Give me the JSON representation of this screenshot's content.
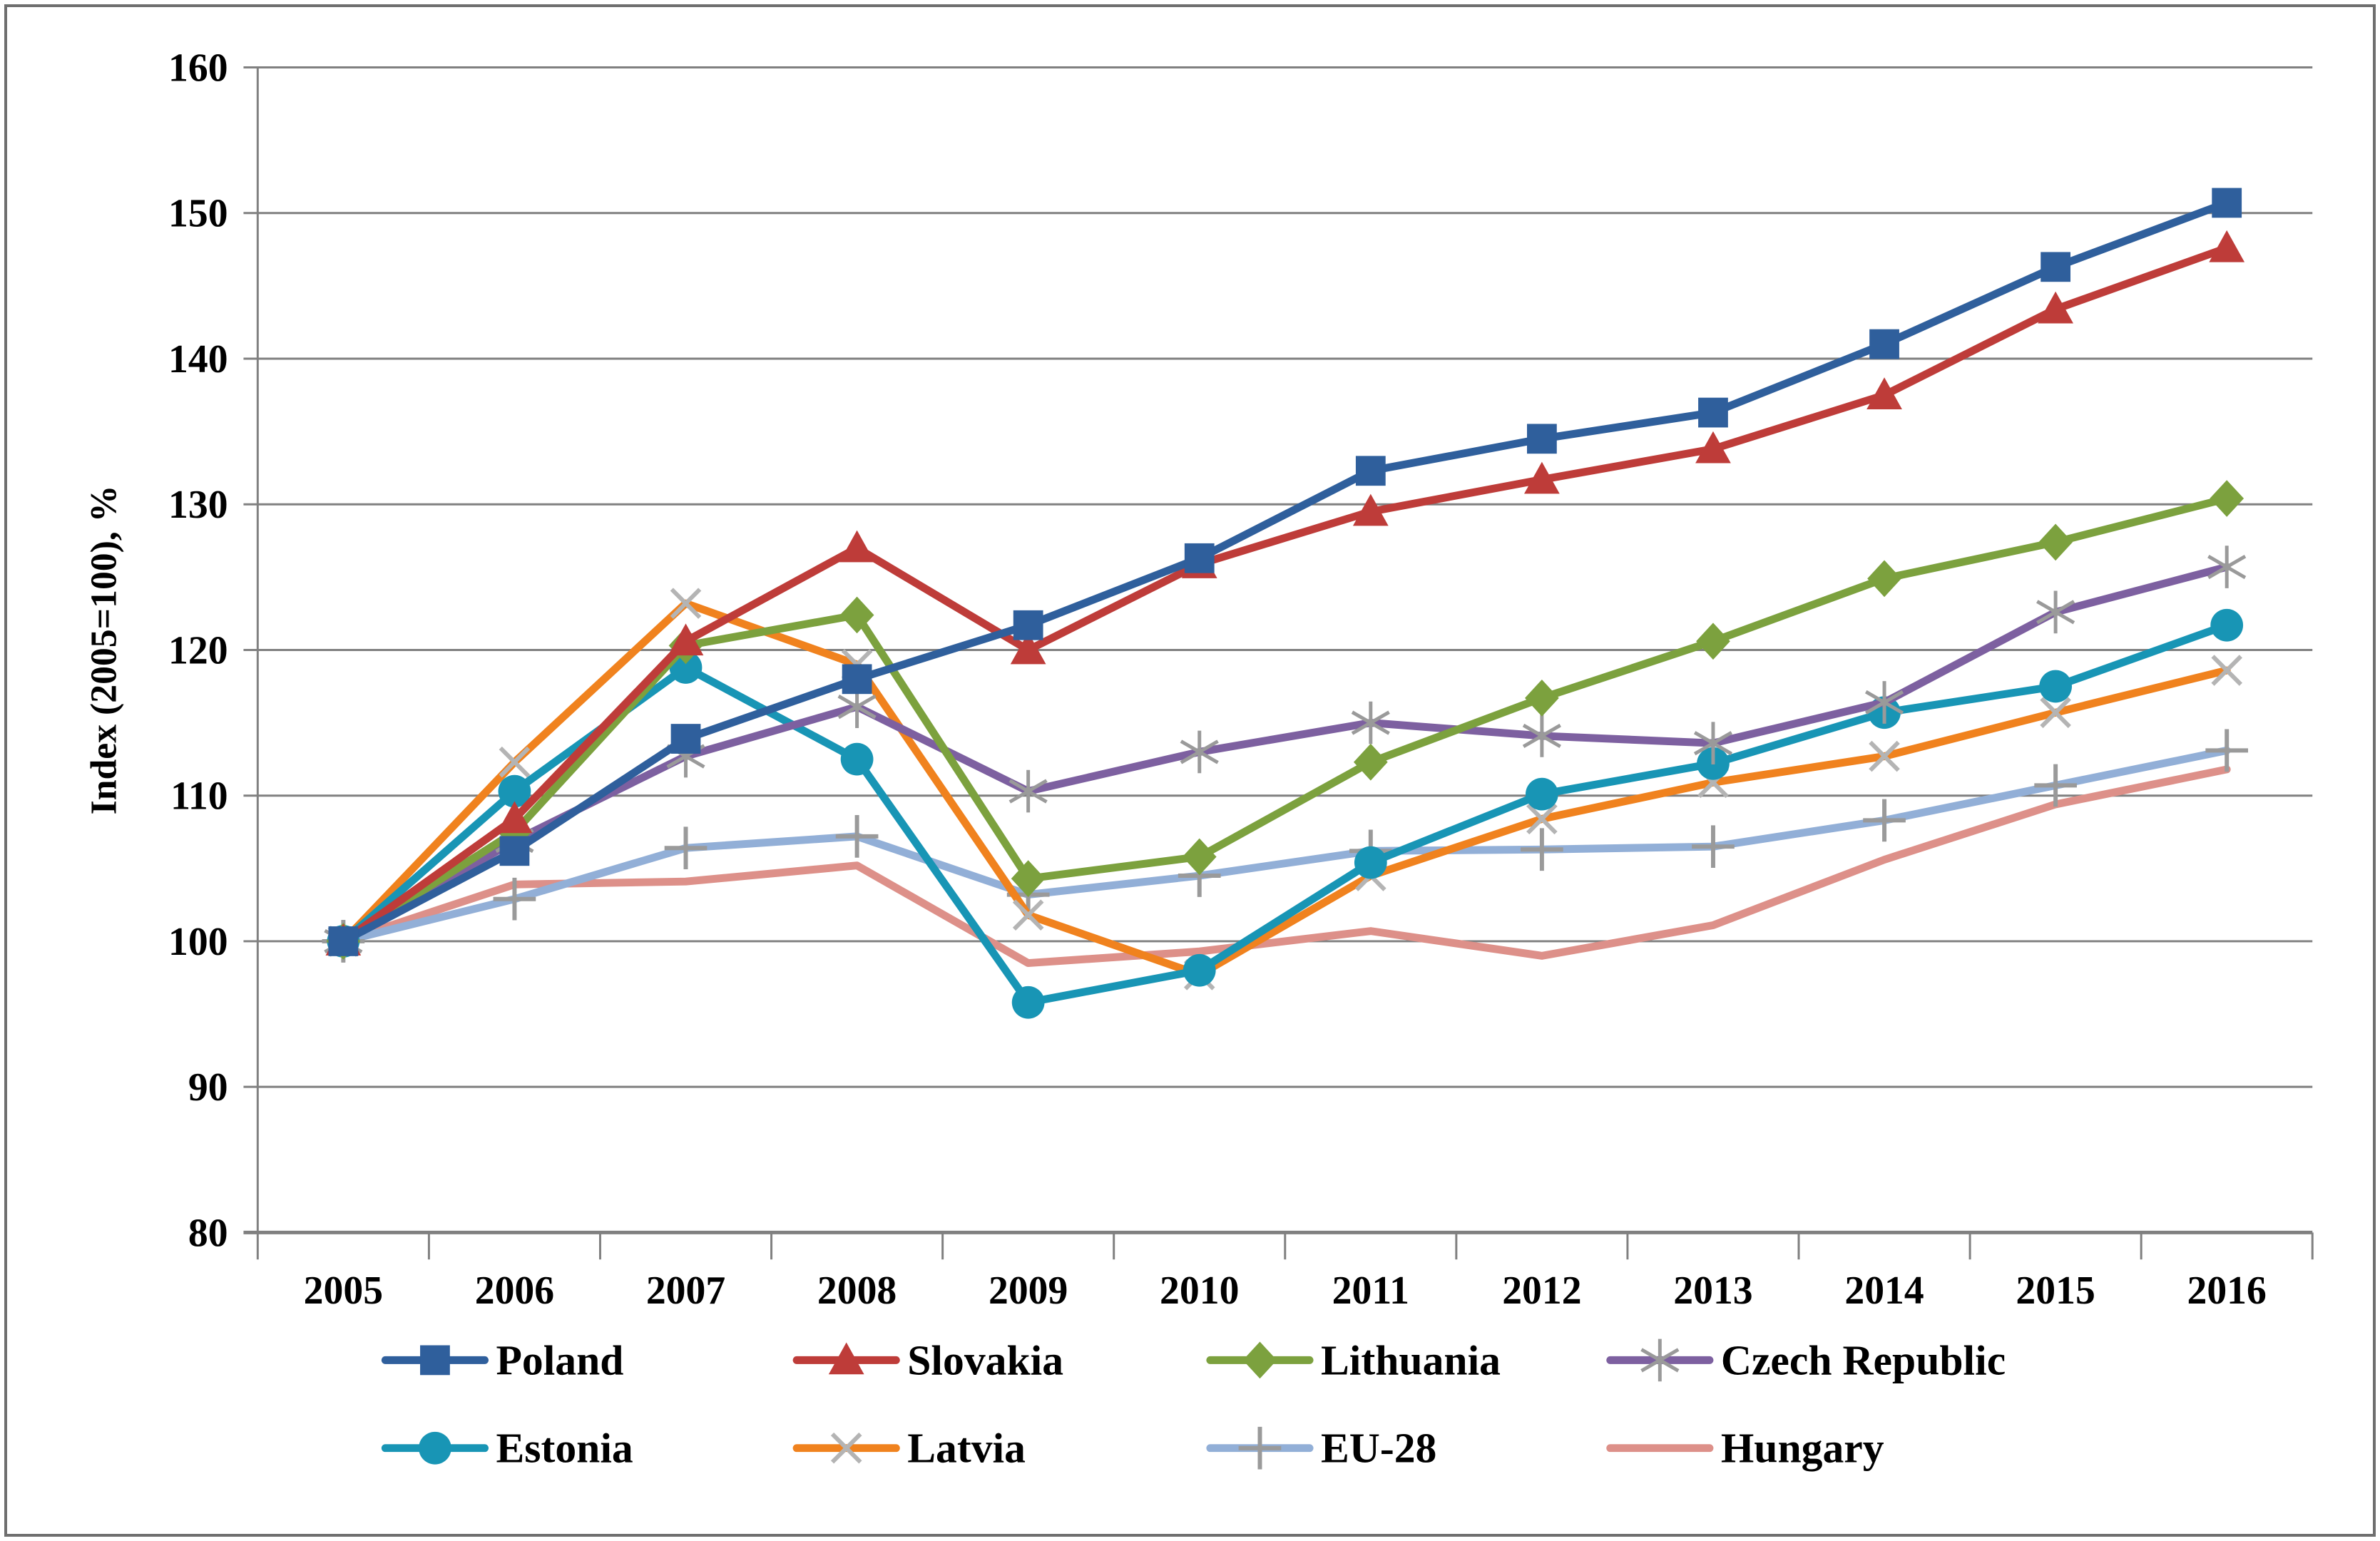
{
  "figure": {
    "background": "#ffffff",
    "border_color": "#6f6f6f",
    "gridline_color": "#808080",
    "axis_color": "#808080",
    "tick_label_color": "#000000"
  },
  "chart_data": {
    "type": "line",
    "title": "",
    "xlabel": "",
    "ylabel": "Index (2005=100), %",
    "ylim": [
      80,
      160
    ],
    "ytick_step": 10,
    "yticks": [
      80,
      90,
      100,
      110,
      120,
      130,
      140,
      150,
      160
    ],
    "grid": true,
    "legend_position": "bottom",
    "x": [
      2005,
      2006,
      2007,
      2008,
      2009,
      2010,
      2011,
      2012,
      2013,
      2014,
      2015,
      2016
    ],
    "series": [
      {
        "name": "Poland",
        "color": "#2F5F9C",
        "marker": "square",
        "values": [
          100,
          106.2,
          113.9,
          118.0,
          121.7,
          126.3,
          132.3,
          134.5,
          136.3,
          141.0,
          146.3,
          150.7
        ]
      },
      {
        "name": "Slovakia",
        "color": "#BE3C39",
        "marker": "triangle",
        "values": [
          100,
          108.4,
          120.6,
          127.0,
          120.0,
          125.9,
          129.5,
          131.7,
          133.8,
          137.5,
          143.4,
          147.6
        ]
      },
      {
        "name": "Lithuania",
        "color": "#7CA13E",
        "marker": "diamond",
        "values": [
          100,
          107.5,
          120.3,
          122.4,
          104.3,
          105.8,
          112.3,
          116.7,
          120.6,
          124.9,
          127.4,
          130.4
        ]
      },
      {
        "name": "Czech Republic",
        "color": "#7D60A0",
        "marker": "asterisk",
        "values": [
          100,
          106.9,
          112.7,
          116.1,
          110.3,
          113.0,
          115.0,
          114.1,
          113.6,
          116.4,
          122.6,
          125.7
        ]
      },
      {
        "name": "Estonia",
        "color": "#1895B5",
        "marker": "circle",
        "values": [
          100,
          110.3,
          118.8,
          112.5,
          95.8,
          98.0,
          105.4,
          110.1,
          112.2,
          115.7,
          117.5,
          121.7
        ]
      },
      {
        "name": "Latvia",
        "color": "#F0821E",
        "marker": "x",
        "values": [
          100,
          112.3,
          123.2,
          119.0,
          101.8,
          97.7,
          104.5,
          108.4,
          110.9,
          112.7,
          115.7,
          118.6
        ]
      },
      {
        "name": "EU-28",
        "color": "#92AFD7",
        "marker": "plus",
        "values": [
          100,
          102.9,
          106.4,
          107.2,
          103.2,
          104.5,
          106.2,
          106.3,
          106.5,
          108.3,
          110.7,
          113.1
        ]
      },
      {
        "name": "Hungary",
        "color": "#DD9089",
        "marker": "none",
        "values": [
          100,
          103.9,
          104.1,
          105.2,
          98.5,
          99.3,
          100.7,
          99.0,
          101.1,
          105.6,
          109.4,
          111.8
        ]
      }
    ]
  },
  "legend": {
    "rows": [
      [
        "Poland",
        "Slovakia",
        "Lithuania",
        "Czech Republic"
      ],
      [
        "Estonia",
        "Latvia",
        "EU-28",
        "Hungary"
      ]
    ]
  }
}
